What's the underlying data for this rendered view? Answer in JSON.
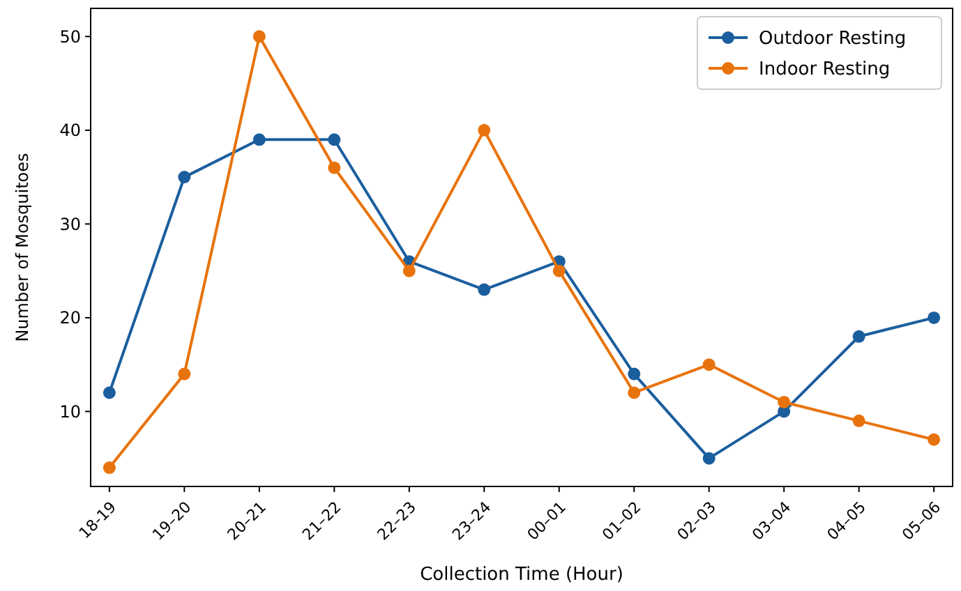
{
  "chart_data": {
    "type": "line",
    "xlabel": "Collection Time (Hour)",
    "ylabel": "Number of Mosquitoes",
    "categories": [
      "18-19",
      "19–20",
      "20–21",
      "21–22",
      "22–23",
      "23–24",
      "00–01",
      "01–02",
      "02–03",
      "03–04",
      "04–05",
      "05–06"
    ],
    "series": [
      {
        "name": "Outdoor Resting",
        "color": "#1b5e9e",
        "values": [
          12,
          35,
          39,
          39,
          26,
          23,
          26,
          14,
          5,
          10,
          18,
          20
        ]
      },
      {
        "name": "Indoor Resting",
        "color": "#e8730c",
        "values": [
          4,
          14,
          50,
          36,
          25,
          40,
          25,
          12,
          15,
          11,
          9,
          7
        ]
      }
    ],
    "ylim": [
      2,
      53
    ],
    "yticks": [
      10,
      20,
      30,
      40,
      50
    ],
    "legend": "top right",
    "marker": "circle",
    "line_style": "solid",
    "grid": false
  }
}
